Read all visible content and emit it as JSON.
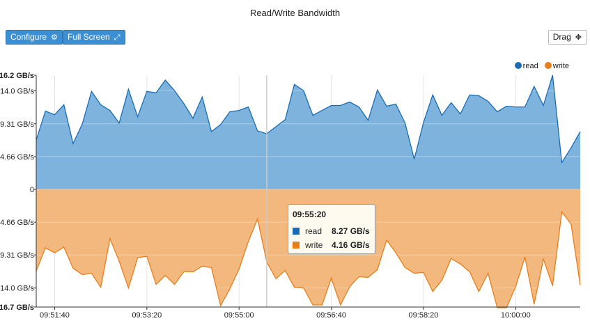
{
  "title": "Read/Write Bandwidth",
  "toolbar": {
    "configure_label": "Configure",
    "fullscreen_label": "Full Screen",
    "drag_label": "Drag"
  },
  "colors": {
    "read": "#1a6cb5",
    "read_fill": "#7db3dc",
    "write": "#e87e1a",
    "write_fill": "#f2b87e"
  },
  "legend": {
    "read": "read",
    "write": "write"
  },
  "tooltip": {
    "time": "09:55:20",
    "read_label": "read",
    "read_value": "8.27 GB/s",
    "write_label": "write",
    "write_value": "4.16 GB/s"
  },
  "chart_data": {
    "type": "area",
    "title": "Read/Write Bandwidth",
    "legend_placement": "top-right",
    "grid": true,
    "y_ticks_top": [
      "16.2 GB/s",
      "14.0 GB/s",
      "9.31 GB/s",
      "4.66 GB/s",
      "0"
    ],
    "y_ticks_bottom": [
      "4.66 GB/s",
      "9.31 GB/s",
      "14.0 GB/s",
      "16.7 GB/s"
    ],
    "x_ticks": [
      "09:51:40",
      "09:53:20",
      "09:55:00",
      "09:56:40",
      "09:58:20",
      "10:00:00"
    ],
    "ylim_read": [
      0,
      16.2
    ],
    "ylim_write": [
      0,
      16.7
    ],
    "x_start_seconds": 0,
    "x_step_seconds": 10,
    "series": [
      {
        "name": "read",
        "values": [
          7.0,
          11.1,
          10.6,
          12.0,
          6.5,
          9.3,
          13.9,
          12.0,
          11.2,
          9.4,
          14.2,
          10.3,
          13.9,
          13.7,
          15.5,
          14.0,
          12.2,
          10.1,
          13.1,
          8.2,
          9.2,
          11.0,
          11.2,
          11.7,
          8.3,
          7.9,
          8.9,
          9.9,
          14.9,
          14.0,
          10.5,
          11.2,
          11.9,
          11.9,
          12.4,
          11.7,
          9.8,
          14.1,
          11.8,
          12.1,
          9.4,
          4.3,
          9.5,
          13.4,
          10.5,
          12.3,
          10.7,
          13.4,
          13.3,
          12.5,
          11.0,
          11.8,
          11.7,
          11.7,
          14.6,
          11.9,
          16.2,
          3.8,
          5.9,
          8.2
        ]
      },
      {
        "name": "write",
        "values": [
          11.6,
          8.3,
          9.0,
          8.2,
          11.2,
          12.1,
          11.9,
          13.9,
          7.0,
          10.2,
          14.0,
          9.7,
          9.5,
          13.5,
          12.2,
          13.5,
          11.7,
          11.7,
          10.9,
          11.1,
          16.5,
          14.1,
          11.3,
          7.4,
          4.2,
          10.3,
          12.7,
          11.5,
          13.9,
          14.0,
          16.4,
          16.4,
          12.6,
          16.4,
          13.8,
          12.4,
          12.5,
          11.4,
          7.2,
          9.0,
          11.1,
          11.9,
          11.8,
          14.5,
          12.9,
          9.8,
          10.6,
          11.7,
          14.5,
          11.9,
          16.8,
          16.8,
          13.8,
          9.6,
          16.3,
          9.9,
          13.7,
          3.2,
          4.9,
          13.6
        ]
      }
    ],
    "highlight_index": 25
  }
}
